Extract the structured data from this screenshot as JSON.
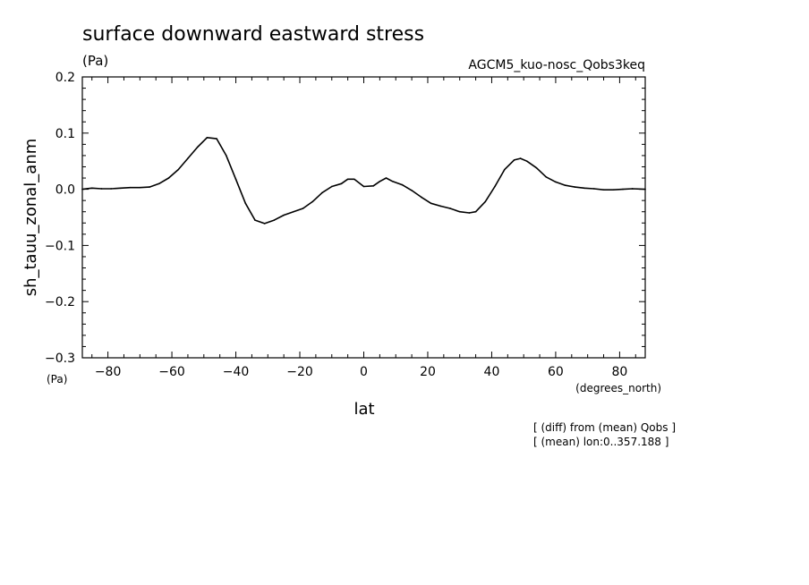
{
  "chart_data": {
    "type": "line",
    "title": "surface downward eastward stress",
    "unit_top": "(Pa)",
    "model_name": "AGCM5_kuo-nosc_Qobs3keq",
    "ylabel": "sh_tauu_zonal_anm",
    "y_unit": "(Pa)",
    "xlabel": "lat",
    "x_unit": "(degrees_north)",
    "notes": [
      "[ (diff) from (mean) Qobs ]",
      "[ (mean) lon:0..357.188 ]"
    ],
    "xlim": [
      -88,
      88
    ],
    "ylim": [
      -0.3,
      0.2
    ],
    "x_ticks": [
      -80,
      -60,
      -40,
      -20,
      0,
      20,
      40,
      60,
      80
    ],
    "x_tick_labels": [
      "−80",
      "−60",
      "−40",
      "−20",
      "0",
      "20",
      "40",
      "60",
      "80"
    ],
    "y_ticks": [
      0.2,
      0.1,
      0.0,
      -0.1,
      -0.2,
      -0.3
    ],
    "y_tick_labels": [
      "0.2",
      "0.1",
      "0.0",
      "−0.1",
      "−0.2",
      "−0.3"
    ],
    "grid": false,
    "series": [
      {
        "x": [
          -88,
          -85,
          -82,
          -79,
          -76,
          -73,
          -70,
          -67,
          -64,
          -61,
          -58,
          -55,
          -52,
          -49,
          -46,
          -43,
          -40,
          -37,
          -34,
          -31,
          -28,
          -25,
          -22,
          -19,
          -16,
          -13,
          -10,
          -7,
          -5,
          -3,
          0,
          3,
          5,
          7,
          9,
          12,
          15,
          18,
          21,
          24,
          27,
          30,
          33,
          35,
          38,
          41,
          44,
          47,
          49,
          51,
          54,
          57,
          60,
          63,
          66,
          69,
          72,
          75,
          78,
          81,
          84,
          88
        ],
        "y": [
          0.0,
          0.002,
          0.001,
          0.001,
          0.002,
          0.003,
          0.003,
          0.004,
          0.01,
          0.02,
          0.035,
          0.055,
          0.075,
          0.092,
          0.09,
          0.06,
          0.018,
          -0.025,
          -0.055,
          -0.061,
          -0.055,
          -0.046,
          -0.04,
          -0.034,
          -0.022,
          -0.006,
          0.005,
          0.01,
          0.018,
          0.018,
          0.005,
          0.006,
          0.014,
          0.02,
          0.014,
          0.008,
          -0.002,
          -0.014,
          -0.025,
          -0.03,
          -0.034,
          -0.04,
          -0.042,
          -0.04,
          -0.022,
          0.005,
          0.035,
          0.052,
          0.055,
          0.05,
          0.038,
          0.022,
          0.013,
          0.007,
          0.004,
          0.002,
          0.001,
          -0.001,
          -0.001,
          0.0,
          0.001,
          0.0
        ]
      }
    ]
  }
}
